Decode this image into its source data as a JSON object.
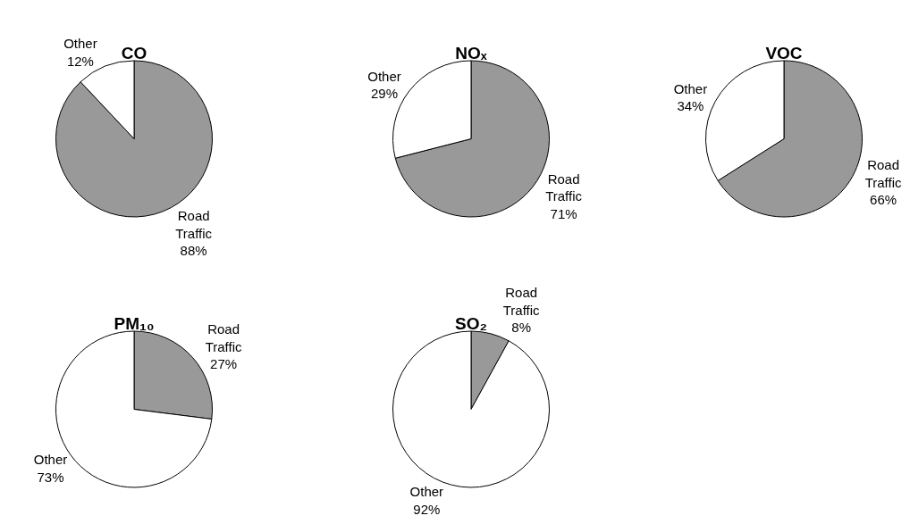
{
  "chart_data": [
    {
      "type": "pie",
      "title": "CO",
      "categories": [
        "Road Traffic",
        "Other"
      ],
      "values": [
        88,
        12
      ],
      "colors": [
        "#999999",
        "#ffffff"
      ],
      "value_labels": [
        "88%",
        "12%"
      ]
    },
    {
      "type": "pie",
      "title": "NOₓ",
      "categories": [
        "Road Traffic",
        "Other"
      ],
      "values": [
        71,
        29
      ],
      "colors": [
        "#999999",
        "#ffffff"
      ],
      "value_labels": [
        "71%",
        "29%"
      ]
    },
    {
      "type": "pie",
      "title": "VOC",
      "categories": [
        "Road Traffic",
        "Other"
      ],
      "values": [
        66,
        34
      ],
      "colors": [
        "#999999",
        "#ffffff"
      ],
      "value_labels": [
        "66%",
        "34%"
      ]
    },
    {
      "type": "pie",
      "title": "PM₁₀",
      "categories": [
        "Road Traffic",
        "Other"
      ],
      "values": [
        27,
        73
      ],
      "colors": [
        "#999999",
        "#ffffff"
      ],
      "value_labels": [
        "27%",
        "73%"
      ]
    },
    {
      "type": "pie",
      "title": "SO₂",
      "categories": [
        "Road Traffic",
        "Other"
      ],
      "values": [
        8,
        92
      ],
      "colors": [
        "#999999",
        "#ffffff"
      ],
      "value_labels": [
        "8%",
        "92%"
      ]
    }
  ]
}
